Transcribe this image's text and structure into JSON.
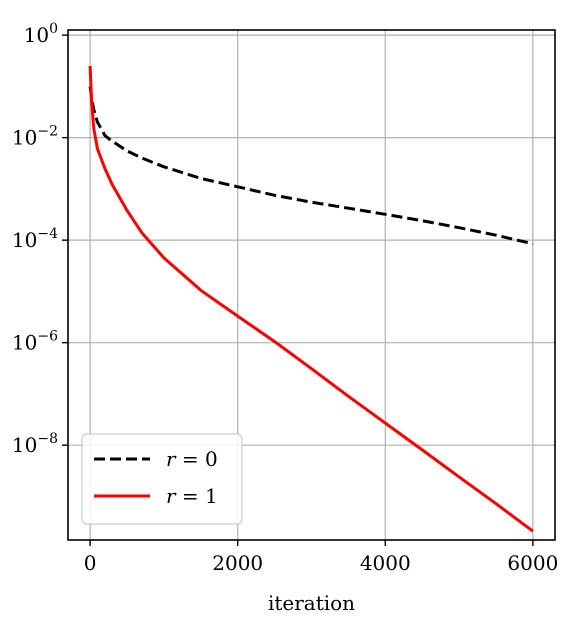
{
  "chart_data": {
    "type": "line",
    "title": "",
    "xlabel": "iteration",
    "ylabel": "",
    "xlim": [
      -300,
      6300
    ],
    "ylim_log10": [
      -9.85,
      0.1
    ],
    "yscale": "log",
    "grid": true,
    "legend_position": "lower-left",
    "x_ticks": [
      0,
      2000,
      4000,
      6000
    ],
    "x_tick_labels": [
      "0",
      "2000",
      "4000",
      "6000"
    ],
    "y_ticks_log10": [
      0,
      -2,
      -4,
      -6,
      -8
    ],
    "y_tick_labels": [
      {
        "base": "10",
        "exp": "0"
      },
      {
        "base": "10",
        "exp": "−2"
      },
      {
        "base": "10",
        "exp": "−4"
      },
      {
        "base": "10",
        "exp": "−6"
      },
      {
        "base": "10",
        "exp": "−8"
      }
    ],
    "series": [
      {
        "name": "r = 0",
        "name_var": "r",
        "name_rest": " = 0",
        "color": "#000000",
        "style": "dashed",
        "x": [
          0,
          20,
          50,
          100,
          200,
          300,
          500,
          700,
          1000,
          1500,
          2000,
          2500,
          3000,
          3500,
          4000,
          4500,
          5000,
          5500,
          6000
        ],
        "y": [
          0.1,
          0.06,
          0.035,
          0.02,
          0.011,
          0.0085,
          0.0055,
          0.004,
          0.0027,
          0.0016,
          0.0011,
          0.00075,
          0.00055,
          0.00042,
          0.00032,
          0.00024,
          0.000175,
          0.000125,
          8.5e-05
        ]
      },
      {
        "name": "r = 1",
        "name_var": "r",
        "name_rest": " = 1",
        "color": "#ff0000",
        "style": "solid",
        "x": [
          0,
          20,
          50,
          100,
          200,
          300,
          500,
          700,
          1000,
          1500,
          2000,
          2500,
          3000,
          3500,
          4000,
          4500,
          5000,
          5500,
          6000
        ],
        "y": [
          0.25,
          0.05,
          0.015,
          0.006,
          0.0025,
          0.0012,
          0.00038,
          0.00014,
          4.5e-05,
          1.05e-05,
          3.3e-06,
          1.05e-06,
          3.1e-07,
          9e-08,
          2.7e-08,
          8.1e-09,
          2.4e-09,
          7.2e-10,
          2.1e-10
        ]
      }
    ]
  }
}
